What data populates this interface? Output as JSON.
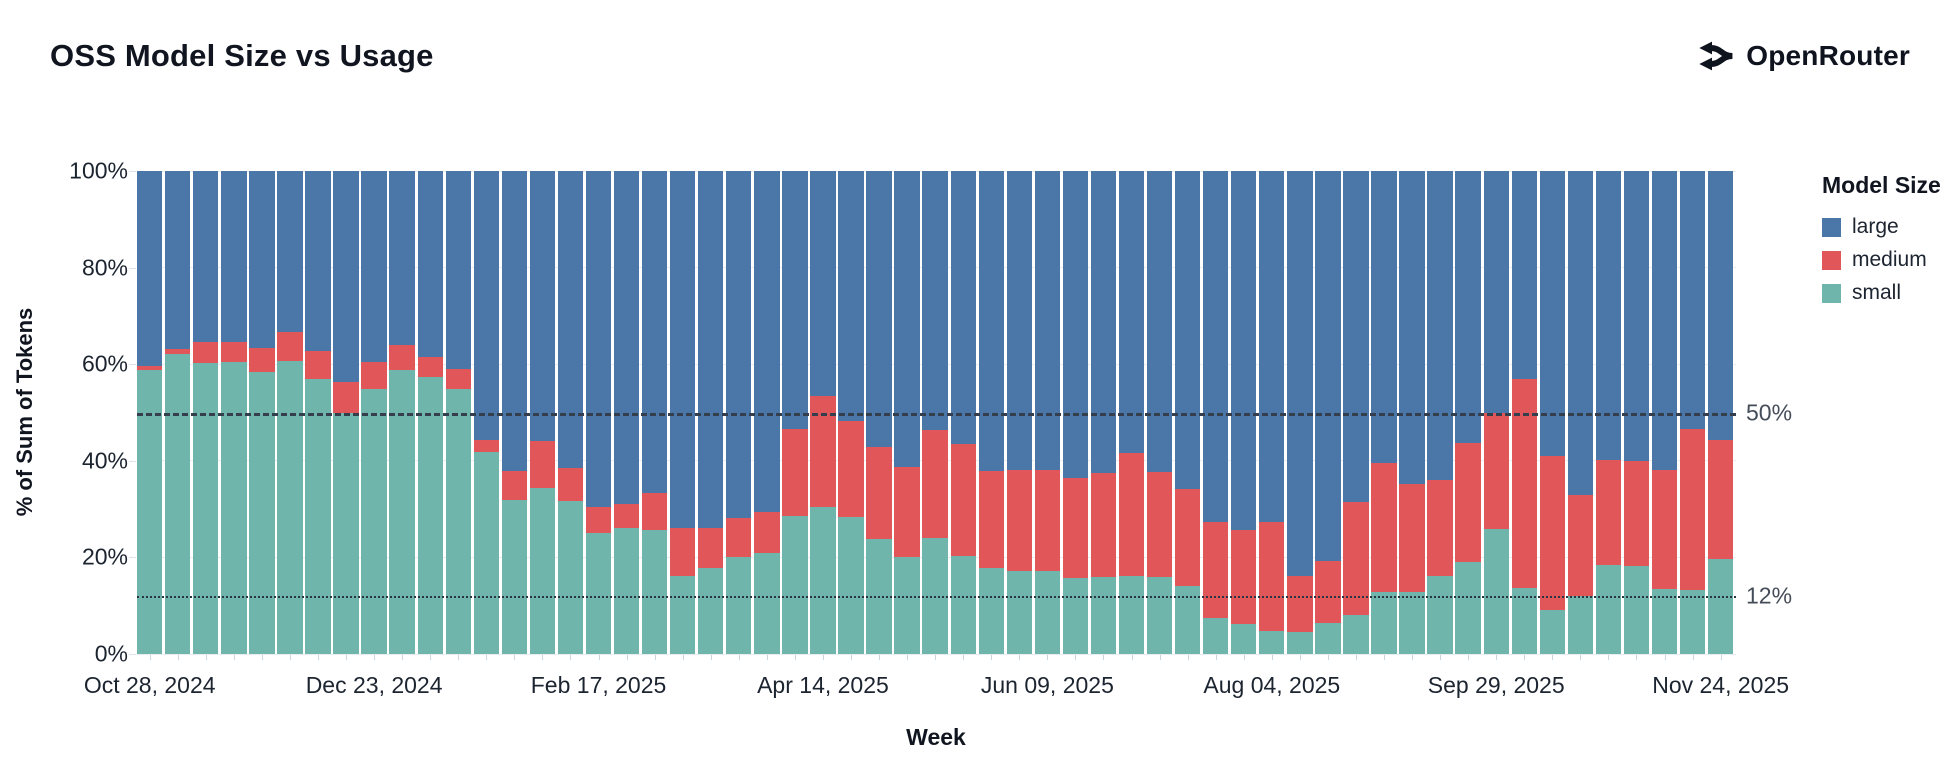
{
  "header": {
    "title": "OSS Model Size vs Usage",
    "brand": "OpenRouter"
  },
  "colors": {
    "large": "#4b76a8",
    "medium": "#e15659",
    "small": "#6fb5ab",
    "text_dark": "#10151f",
    "axis_text": "#1c2430",
    "annotation_text": "#454d59",
    "gridline": "#e7ecf1",
    "reference_line": "#343e4c",
    "background": "#ffffff"
  },
  "chart_data": {
    "type": "bar",
    "stacked": true,
    "title": "OSS Model Size vs Usage",
    "xlabel": "Week",
    "ylabel": "% of Sum of Tokens",
    "ylim": [
      0,
      100
    ],
    "grid": true,
    "y_ticks": [
      {
        "label": "0%",
        "value": 0
      },
      {
        "label": "20%",
        "value": 20
      },
      {
        "label": "40%",
        "value": 40
      },
      {
        "label": "60%",
        "value": 60
      },
      {
        "label": "80%",
        "value": 80
      },
      {
        "label": "100%",
        "value": 100
      }
    ],
    "x_tick_labels": [
      "Oct 28, 2024",
      "Dec 23, 2024",
      "Feb 17, 2025",
      "Apr 14, 2025",
      "Jun 09, 2025",
      "Aug 04, 2025",
      "Sep 29, 2025",
      "Nov 24, 2025"
    ],
    "x_tick_every": 8,
    "n_bars": 57,
    "legend": {
      "title": "Model Size",
      "position": "right",
      "items": [
        {
          "label": "large",
          "color": "#4b76a8"
        },
        {
          "label": "medium",
          "color": "#e15659"
        },
        {
          "label": "small",
          "color": "#6fb5ab"
        }
      ]
    },
    "reference_lines": [
      {
        "label": "50%",
        "value": 50,
        "style": "dashed"
      },
      {
        "label": "12%",
        "value": 12,
        "style": "dotted"
      }
    ],
    "stack_order_bottom_to_top": [
      "small",
      "medium",
      "large"
    ],
    "series": [
      {
        "name": "small",
        "color": "#6fb5ab",
        "values": [
          58.9,
          62.2,
          60.3,
          60.5,
          58.3,
          60.7,
          57,
          50,
          54.8,
          58.7,
          57.3,
          54.8,
          41.9,
          31.9,
          34.3,
          31.7,
          25,
          26.1,
          25.7,
          16.1,
          17.8,
          20.1,
          20.9,
          28.6,
          30.4,
          28.3,
          23.8,
          20.1,
          24,
          20.2,
          17.8,
          17.1,
          17.2,
          15.7,
          15.9,
          16.1,
          15.9,
          14.1,
          7.4,
          6.2,
          4.7,
          4.5,
          6.4,
          8.1,
          12.8,
          12.8,
          16.2,
          19,
          25.9,
          13.7,
          9.2,
          12,
          18.5,
          18.2,
          13.4,
          13.2,
          19.7
        ]
      },
      {
        "name": "medium",
        "color": "#e15659",
        "values": [
          0.7,
          0.9,
          4.3,
          4.2,
          5,
          5.9,
          5.8,
          6.3,
          5.7,
          5.2,
          4.1,
          4.2,
          2.4,
          5.9,
          9.8,
          6.8,
          5.4,
          4.9,
          7.6,
          10,
          8.2,
          8,
          8.6,
          17.9,
          23.1,
          20,
          19,
          18.7,
          22.3,
          23.3,
          20,
          20.9,
          20.8,
          20.7,
          21.5,
          25.6,
          21.7,
          20,
          20,
          19.5,
          22.7,
          11.7,
          12.9,
          23.3,
          26.8,
          22.4,
          19.9,
          24.7,
          24,
          43.2,
          31.7,
          21,
          21.7,
          21.8,
          24.7,
          33.3,
          24.6
        ]
      },
      {
        "name": "large",
        "color": "#4b76a8",
        "values": [
          40.4,
          36.9,
          35.4,
          35.3,
          36.7,
          33.4,
          37.2,
          43.7,
          39.5,
          36.1,
          38.6,
          41,
          55.7,
          62.2,
          55.9,
          61.5,
          69.6,
          69,
          66.7,
          73.9,
          74,
          71.9,
          70.5,
          53.5,
          46.5,
          51.7,
          57.2,
          61.2,
          53.7,
          56.5,
          62.2,
          62,
          62,
          63.6,
          62.6,
          58.3,
          62.4,
          65.9,
          72.6,
          74.3,
          72.6,
          83.8,
          80.7,
          68.6,
          60.4,
          64.8,
          63.9,
          56.3,
          50.1,
          43.1,
          59.1,
          67,
          59.8,
          60,
          61.9,
          53.5,
          55.7
        ]
      }
    ]
  }
}
